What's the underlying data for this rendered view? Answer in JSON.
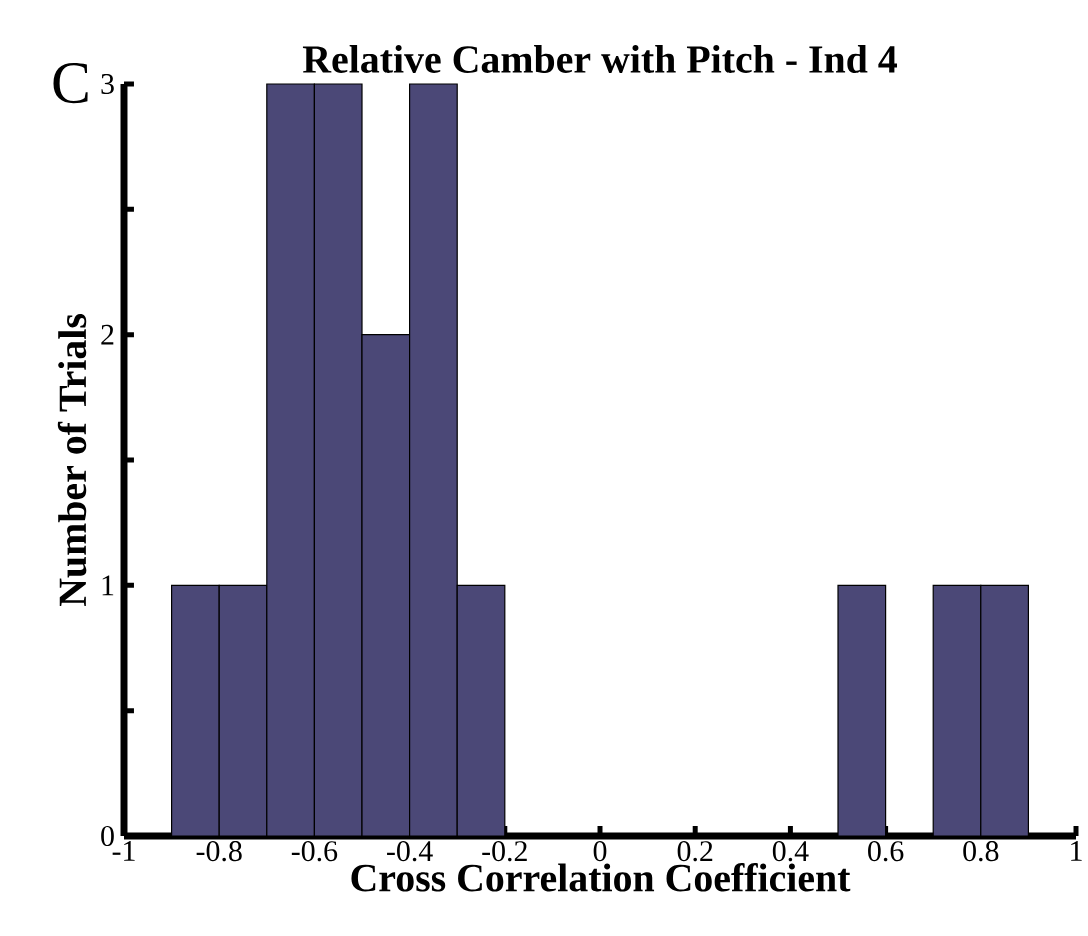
{
  "chart_data": {
    "type": "histogram",
    "title": "Relative Camber with Pitch - Ind 4",
    "xlabel": "Cross Correlation Coefficient",
    "ylabel": "Number of Trials",
    "annotations": [
      "C"
    ],
    "bins": [
      -1,
      -0.9,
      -0.8,
      -0.7,
      -0.6,
      -0.5,
      -0.4,
      -0.3,
      -0.2,
      -0.1,
      0,
      0.1,
      0.2,
      0.3,
      0.4,
      0.5,
      0.6,
      0.7,
      0.8,
      0.9,
      1
    ],
    "values": [
      0,
      1,
      1,
      3,
      3,
      2,
      3,
      1,
      0,
      0,
      0,
      0,
      0,
      0,
      0,
      1,
      0,
      1,
      1,
      0
    ],
    "color": "#4b4877",
    "xlim": [
      -1,
      1
    ],
    "ylim": [
      0,
      3
    ],
    "xticks": [
      -1,
      -0.8,
      -0.6,
      -0.4,
      -0.2,
      0,
      0.2,
      0.4,
      0.6,
      0.8,
      1
    ],
    "yticks": [
      0,
      {
        "value": 0.5,
        "label": null
      },
      1,
      {
        "value": 1.5,
        "label": null
      },
      2,
      {
        "value": 2.5,
        "label": null
      },
      3
    ],
    "grid": false
  }
}
